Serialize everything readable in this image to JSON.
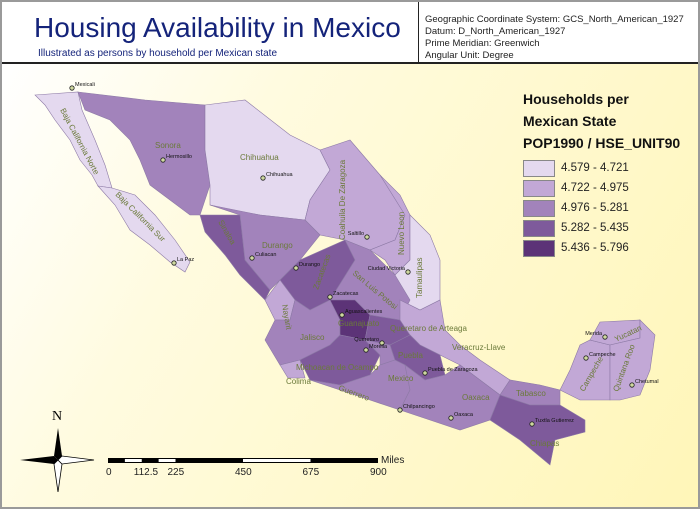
{
  "header": {
    "title": "Housing Availability in Mexico",
    "subtitle": "Illustrated as persons by household per Mexican state",
    "coordinate_info": [
      "Geographic Coordinate System: GCS_North_American_1927",
      "Datum: D_North_American_1927",
      "Prime Meridian: Greenwich",
      "Angular Unit: Degree"
    ]
  },
  "legend": {
    "title_lines": [
      "Households per",
      "Mexican State",
      "POP1990 / HSE_UNIT90"
    ],
    "classes": [
      {
        "label": "4.579 - 4.721",
        "color": "#e4d9ef"
      },
      {
        "label": "4.722 - 4.975",
        "color": "#c2a8d6"
      },
      {
        "label": "4.976 - 5.281",
        "color": "#a283bb"
      },
      {
        "label": "5.282 - 5.435",
        "color": "#7e5a9b"
      },
      {
        "label": "5.436 - 5.796",
        "color": "#5c3377"
      }
    ]
  },
  "states": [
    {
      "name": "Baja California Norte",
      "class": 0
    },
    {
      "name": "Baja California Sur",
      "class": 0
    },
    {
      "name": "Sonora",
      "class": 2
    },
    {
      "name": "Chihuahua",
      "class": 0
    },
    {
      "name": "Coahuila De Zaragoza",
      "class": 1
    },
    {
      "name": "Nuevo Leon",
      "class": 1
    },
    {
      "name": "Tamaulipas",
      "class": 0
    },
    {
      "name": "Sinaloa",
      "class": 3
    },
    {
      "name": "Durango",
      "class": 2
    },
    {
      "name": "Zacatecas",
      "class": 3
    },
    {
      "name": "San Luis Potosi",
      "class": 2
    },
    {
      "name": "Nayarit",
      "class": 1
    },
    {
      "name": "Jalisco",
      "class": 2
    },
    {
      "name": "Guanajuato",
      "class": 4
    },
    {
      "name": "Queretaro de Arteaga",
      "class": 3
    },
    {
      "name": "Michoacan de Ocampo",
      "class": 3
    },
    {
      "name": "Colima",
      "class": 1
    },
    {
      "name": "Mexico",
      "class": 2
    },
    {
      "name": "Veracruz-Llave",
      "class": 1
    },
    {
      "name": "Puebla",
      "class": 3
    },
    {
      "name": "Guerrero",
      "class": 2
    },
    {
      "name": "Oaxaca",
      "class": 2
    },
    {
      "name": "Tabasco",
      "class": 2
    },
    {
      "name": "Chiapas",
      "class": 3
    },
    {
      "name": "Campeche",
      "class": 1
    },
    {
      "name": "Yucatan",
      "class": 1
    },
    {
      "name": "Quintana Roo",
      "class": 1
    }
  ],
  "cities": [
    "Mexicali",
    "Hermosillo",
    "La Paz",
    "Culiacan",
    "Chihuahua",
    "Durango",
    "Saltillo",
    "Ciudad Victoria",
    "Zacatecas",
    "Aguascalientes",
    "Queretaro",
    "Morelia",
    "Chilpancingo",
    "Oaxaca",
    "Puebla de Zaragoza",
    "Tuxtla Gutierrez",
    "Merida",
    "Campeche",
    "Chetumal"
  ],
  "scale_bar": {
    "ticks": [
      "0",
      "112.5",
      "225",
      "450",
      "675",
      "900"
    ],
    "unit": "Miles"
  },
  "north_arrow": {
    "label": "N"
  }
}
